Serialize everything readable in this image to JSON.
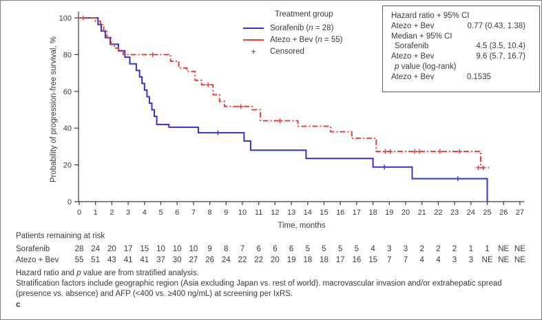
{
  "colors": {
    "sorafenib": "#3333cc",
    "atezo": "#e8413a",
    "axis": "#3a3a3a",
    "text": "#3a3a3a",
    "box_border": "#5a5a5a"
  },
  "legend": {
    "title": "Treatment group",
    "items": [
      {
        "pre": "Sorafenib (",
        "n": "n",
        "post": " = 28)",
        "color_key": "sorafenib"
      },
      {
        "pre": "Atezo + Bev (",
        "n": "n",
        "post": " = 55)",
        "color_key": "atezo"
      }
    ],
    "censored_symbol": "+",
    "censored_label": "Censored"
  },
  "stats": {
    "rows": [
      {
        "label": "Hazard ratio + 95% CI",
        "value": ""
      },
      {
        "label": "Atezo + Bev",
        "value": "0.77 (0.43, 1.38)"
      },
      {
        "label": "Median + 95% CI",
        "value": ""
      },
      {
        "label": "Sorafenib",
        "value": "4.5 (3.5, 10.4)"
      },
      {
        "label": "Atezo + Bev",
        "value": "9.6 (5.7, 16.7)"
      },
      {
        "label_pre": "p",
        "label_post": " value (log-rank)",
        "value": ""
      },
      {
        "label": "Atezo + Bev",
        "value": "0.1535"
      }
    ]
  },
  "at_risk": {
    "title": "Patients remaining at risk",
    "rows": [
      {
        "label": "Sorafenib",
        "values": [
          "28",
          "24",
          "20",
          "17",
          "15",
          "10",
          "10",
          "10",
          "9",
          "8",
          "7",
          "6",
          "6",
          "6",
          "5",
          "5",
          "5",
          "5",
          "4",
          "3",
          "3",
          "2",
          "2",
          "2",
          "1",
          "1",
          "NE",
          "NE"
        ]
      },
      {
        "label": "Atezo + Bev",
        "values": [
          "55",
          "51",
          "43",
          "41",
          "41",
          "37",
          "30",
          "27",
          "26",
          "24",
          "22",
          "22",
          "20",
          "19",
          "18",
          "18",
          "17",
          "16",
          "15",
          "7",
          "7",
          "4",
          "4",
          "3",
          "3",
          "NE",
          "NE",
          "NE"
        ]
      }
    ]
  },
  "footnotes": {
    "line1_pre": "Hazard ratio and ",
    "line1_italic": "p",
    "line1_post": " value are from stratified analysis.",
    "line2": "Stratification factors include geographic region (Asia excluding Japan vs. rest of world). macrovascular invasion and/or extrahepatic spread",
    "line3": "(presence vs. absence) and AFP (<400 vs. ≥400 ng/mL) at screening per IxRS.",
    "panel_label": "c"
  },
  "chart_data": {
    "type": "line",
    "subtype": "kaplan-meier-step",
    "xlabel": "Time, months",
    "ylabel": "Probability of progression-free survival, %",
    "xlim": [
      0,
      27
    ],
    "ylim": [
      0,
      100
    ],
    "x_ticks": [
      0,
      1,
      2,
      3,
      4,
      5,
      6,
      7,
      8,
      9,
      10,
      11,
      12,
      13,
      14,
      15,
      16,
      17,
      18,
      19,
      20,
      21,
      22,
      23,
      24,
      25,
      26,
      27
    ],
    "y_ticks": [
      0,
      20,
      40,
      60,
      80,
      100
    ],
    "grid": false,
    "legend_position": "top-center",
    "series": [
      {
        "name": "Sorafenib (n = 28)",
        "color_key": "sorafenib",
        "dash": "",
        "steps": [
          [
            0,
            100
          ],
          [
            1.15,
            100
          ],
          [
            1.15,
            96.4
          ],
          [
            1.35,
            96.4
          ],
          [
            1.35,
            92.9
          ],
          [
            1.6,
            92.9
          ],
          [
            1.6,
            89.3
          ],
          [
            1.9,
            89.3
          ],
          [
            1.9,
            85.7
          ],
          [
            2.4,
            85.7
          ],
          [
            2.4,
            82.1
          ],
          [
            2.8,
            82.1
          ],
          [
            2.8,
            78.6
          ],
          [
            3.1,
            78.6
          ],
          [
            3.1,
            75
          ],
          [
            3.5,
            75
          ],
          [
            3.5,
            71.4
          ],
          [
            3.7,
            71.4
          ],
          [
            3.7,
            67.9
          ],
          [
            3.85,
            67.9
          ],
          [
            3.85,
            64.3
          ],
          [
            4,
            64.3
          ],
          [
            4,
            60.7
          ],
          [
            4.15,
            60.7
          ],
          [
            4.15,
            57.1
          ],
          [
            4.3,
            57.1
          ],
          [
            4.3,
            53.6
          ],
          [
            4.45,
            53.6
          ],
          [
            4.45,
            50
          ],
          [
            4.6,
            50
          ],
          [
            4.6,
            46.4
          ],
          [
            4.75,
            46.4
          ],
          [
            4.75,
            42
          ],
          [
            5.5,
            42
          ],
          [
            5.5,
            40.5
          ],
          [
            7.3,
            40.5
          ],
          [
            7.3,
            37.5
          ],
          [
            10.1,
            37.5
          ],
          [
            10.1,
            33
          ],
          [
            10.5,
            33
          ],
          [
            10.5,
            28
          ],
          [
            13.9,
            28
          ],
          [
            13.9,
            23.5
          ],
          [
            18,
            23.5
          ],
          [
            18,
            18.8
          ],
          [
            20.4,
            18.8
          ],
          [
            20.4,
            12.5
          ],
          [
            25,
            12.5
          ],
          [
            25,
            0
          ]
        ],
        "censors": [
          [
            8.5,
            37.5
          ],
          [
            18.7,
            18.8
          ],
          [
            23.2,
            12.5
          ]
        ]
      },
      {
        "name": "Atezo + Bev (n = 55)",
        "color_key": "atezo",
        "dash": "8 3 2 3",
        "steps": [
          [
            0,
            100
          ],
          [
            1,
            100
          ],
          [
            1,
            98.2
          ],
          [
            1.3,
            98.2
          ],
          [
            1.3,
            96.4
          ],
          [
            1.5,
            96.4
          ],
          [
            1.5,
            92.7
          ],
          [
            1.7,
            92.7
          ],
          [
            1.7,
            89.1
          ],
          [
            1.95,
            89.1
          ],
          [
            1.95,
            85.5
          ],
          [
            2.15,
            85.5
          ],
          [
            2.15,
            83.6
          ],
          [
            2.4,
            83.6
          ],
          [
            2.4,
            81.8
          ],
          [
            2.7,
            81.8
          ],
          [
            2.7,
            80
          ],
          [
            5.6,
            80
          ],
          [
            5.6,
            76.4
          ],
          [
            6.1,
            76.4
          ],
          [
            6.1,
            72.7
          ],
          [
            6.6,
            72.7
          ],
          [
            6.6,
            70.9
          ],
          [
            7.1,
            70.9
          ],
          [
            7.1,
            66
          ],
          [
            7.5,
            66
          ],
          [
            7.5,
            63.6
          ],
          [
            8.2,
            63.6
          ],
          [
            8.2,
            58.2
          ],
          [
            8.6,
            58.2
          ],
          [
            8.6,
            54.5
          ],
          [
            8.9,
            54.5
          ],
          [
            8.9,
            51.8
          ],
          [
            10.6,
            51.8
          ],
          [
            10.6,
            50
          ],
          [
            11.1,
            50
          ],
          [
            11.1,
            44
          ],
          [
            13.4,
            44
          ],
          [
            13.4,
            41
          ],
          [
            15.4,
            41
          ],
          [
            15.4,
            38
          ],
          [
            16.7,
            38
          ],
          [
            16.7,
            34.5
          ],
          [
            18.2,
            34.5
          ],
          [
            18.2,
            27.3
          ],
          [
            24.6,
            27.3
          ],
          [
            24.6,
            18.5
          ],
          [
            25.1,
            18.5
          ]
        ],
        "censors": [
          [
            0.25,
            100
          ],
          [
            4.5,
            80
          ],
          [
            7.9,
            63.6
          ],
          [
            9.9,
            51.8
          ],
          [
            12.3,
            44
          ],
          [
            18.75,
            27.3
          ],
          [
            19.05,
            27.3
          ],
          [
            20.55,
            27.3
          ],
          [
            20.85,
            27.3
          ],
          [
            22.1,
            27.3
          ],
          [
            23.3,
            27.3
          ],
          [
            24.45,
            18.5
          ],
          [
            24.75,
            18.5
          ]
        ]
      }
    ]
  }
}
